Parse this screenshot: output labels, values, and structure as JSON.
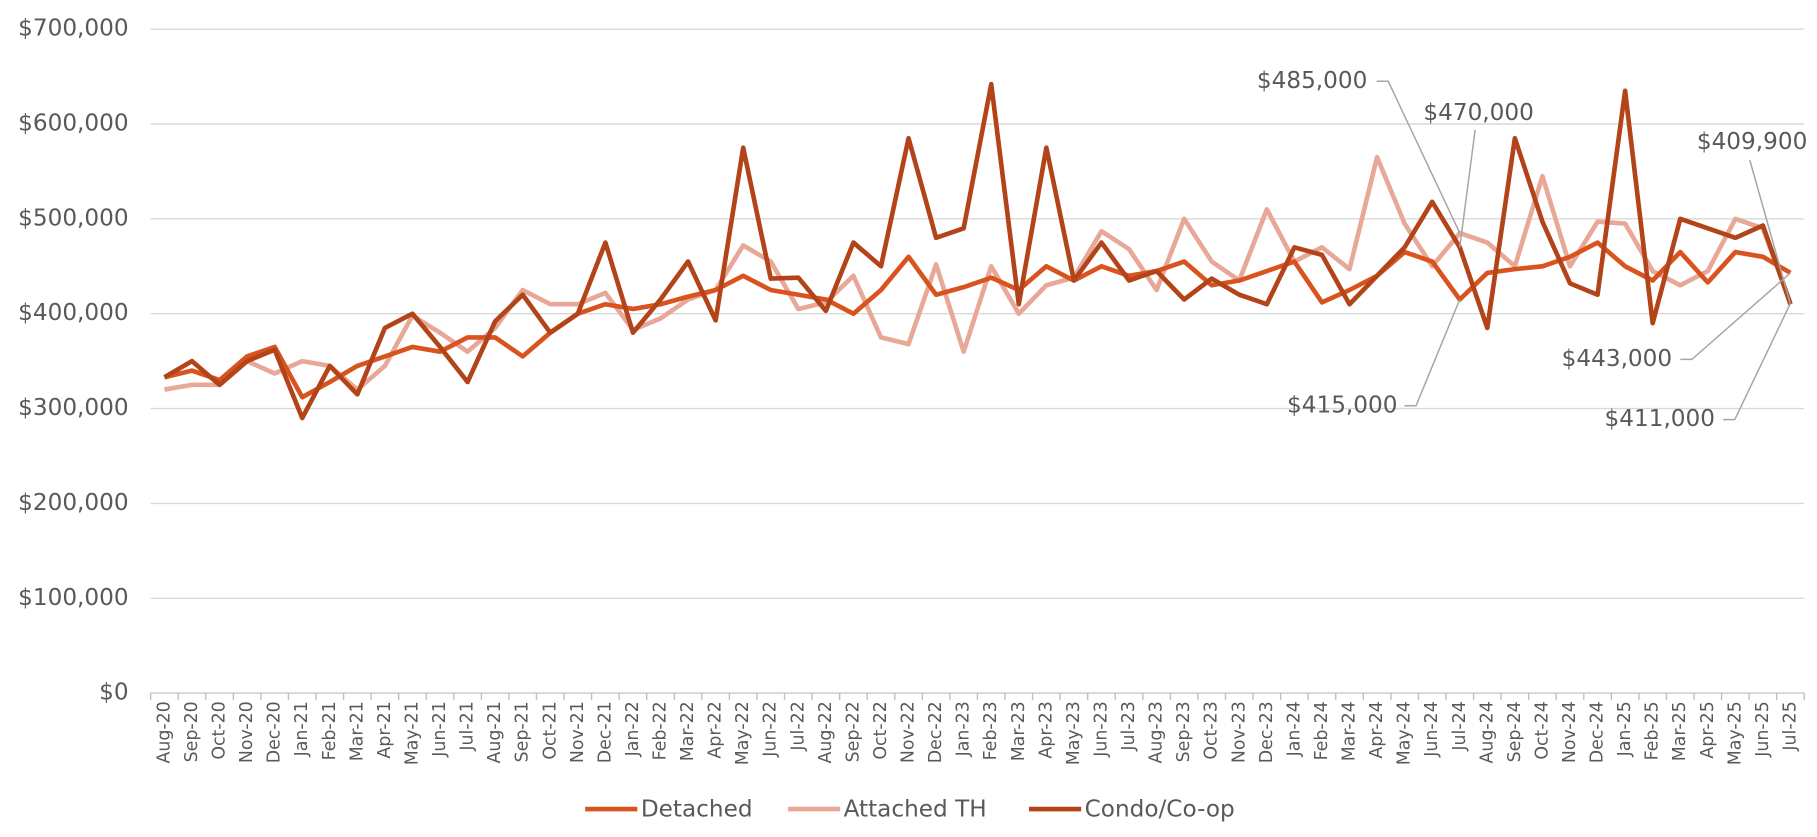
{
  "chart_data": {
    "type": "line",
    "categories": [
      "Aug-20",
      "Sep-20",
      "Oct-20",
      "Nov-20",
      "Dec-20",
      "Jan-21",
      "Feb-21",
      "Mar-21",
      "Apr-21",
      "May-21",
      "Jun-21",
      "Jul-21",
      "Aug-21",
      "Sep-21",
      "Oct-21",
      "Nov-21",
      "Dec-21",
      "Jan-22",
      "Feb-22",
      "Mar-22",
      "Apr-22",
      "May-22",
      "Jun-22",
      "Jul-22",
      "Aug-22",
      "Sep-22",
      "Oct-22",
      "Nov-22",
      "Dec-22",
      "Jan-23",
      "Feb-23",
      "Mar-23",
      "Apr-23",
      "May-23",
      "Jun-23",
      "Jul-23",
      "Aug-23",
      "Sep-23",
      "Oct-23",
      "Nov-23",
      "Dec-23",
      "Jan-24",
      "Feb-24",
      "Mar-24",
      "Apr-24",
      "May-24",
      "Jun-24",
      "Jul-24",
      "Aug-24",
      "Sep-24",
      "Oct-24",
      "Nov-24",
      "Dec-24",
      "Jan-25",
      "Feb-25",
      "Mar-25",
      "Apr-25",
      "May-25",
      "Jun-25",
      "Jul-25"
    ],
    "series": [
      {
        "name": "Detached",
        "color": "#d9531e",
        "values": [
          333000,
          340000,
          330000,
          355000,
          365000,
          312000,
          328000,
          345000,
          355000,
          365000,
          360000,
          375000,
          375000,
          355000,
          380000,
          400000,
          410000,
          405000,
          410000,
          418000,
          425000,
          440000,
          425000,
          420000,
          415000,
          400000,
          425000,
          460000,
          420000,
          428000,
          438000,
          425000,
          450000,
          435000,
          450000,
          440000,
          445000,
          455000,
          430000,
          435000,
          445000,
          455000,
          412000,
          425000,
          440000,
          465000,
          455000,
          415000,
          443000,
          447000,
          450000,
          460000,
          475000,
          450000,
          435000,
          465000,
          433000,
          465000,
          460000,
          443000
        ]
      },
      {
        "name": "Attached TH",
        "color": "#e8a898",
        "values": [
          320000,
          325000,
          325000,
          350000,
          337000,
          350000,
          345000,
          320000,
          345000,
          398000,
          380000,
          360000,
          385000,
          425000,
          410000,
          410000,
          422000,
          383000,
          395000,
          415000,
          425000,
          472000,
          455000,
          405000,
          412000,
          440000,
          375000,
          368000,
          452000,
          360000,
          450000,
          400000,
          430000,
          438000,
          487000,
          468000,
          425000,
          500000,
          455000,
          435000,
          510000,
          455000,
          470000,
          447000,
          565000,
          495000,
          450000,
          485000,
          475000,
          450000,
          545000,
          450000,
          497000,
          495000,
          445000,
          430000,
          445000,
          500000,
          490000,
          411000
        ]
      },
      {
        "name": "Condo/Co-op",
        "color": "#b3441a",
        "values": [
          333000,
          350000,
          325000,
          350000,
          362000,
          290000,
          345000,
          315000,
          385000,
          400000,
          365000,
          328000,
          392000,
          420000,
          380000,
          400000,
          475000,
          380000,
          415000,
          455000,
          393000,
          575000,
          437000,
          438000,
          403000,
          475000,
          450000,
          585000,
          480000,
          490000,
          642000,
          410000,
          575000,
          435000,
          475000,
          435000,
          445000,
          415000,
          437000,
          420000,
          410000,
          470000,
          462000,
          410000,
          440000,
          470000,
          518000,
          470000,
          385000,
          585000,
          497000,
          432000,
          420000,
          635000,
          390000,
          500000,
          490000,
          480000,
          493000,
          409900
        ]
      }
    ],
    "ylim": [
      0,
      700000
    ],
    "yticks": [
      {
        "value": 0,
        "label": "$0"
      },
      {
        "value": 100000,
        "label": "$100,000"
      },
      {
        "value": 200000,
        "label": "$200,000"
      },
      {
        "value": 300000,
        "label": "$300,000"
      },
      {
        "value": 400000,
        "label": "$400,000"
      },
      {
        "value": 500000,
        "label": "$500,000"
      },
      {
        "value": 600000,
        "label": "$600,000"
      },
      {
        "value": 700000,
        "label": "$700,000"
      }
    ],
    "grid": true,
    "legend": "bottom",
    "annotations": [
      {
        "label": "$485,000",
        "series": "Attached TH",
        "x": "Jul-24"
      },
      {
        "label": "$470,000",
        "series": "Condo/Co-op",
        "x": "Jul-24"
      },
      {
        "label": "$415,000",
        "series": "Detached",
        "x": "Jul-24"
      },
      {
        "label": "$409,900",
        "series": "Condo/Co-op",
        "x": "Jul-25"
      },
      {
        "label": "$443,000",
        "series": "Detached",
        "x": "Jul-25"
      },
      {
        "label": "$411,000",
        "series": "Attached TH",
        "x": "Jul-25"
      }
    ]
  }
}
